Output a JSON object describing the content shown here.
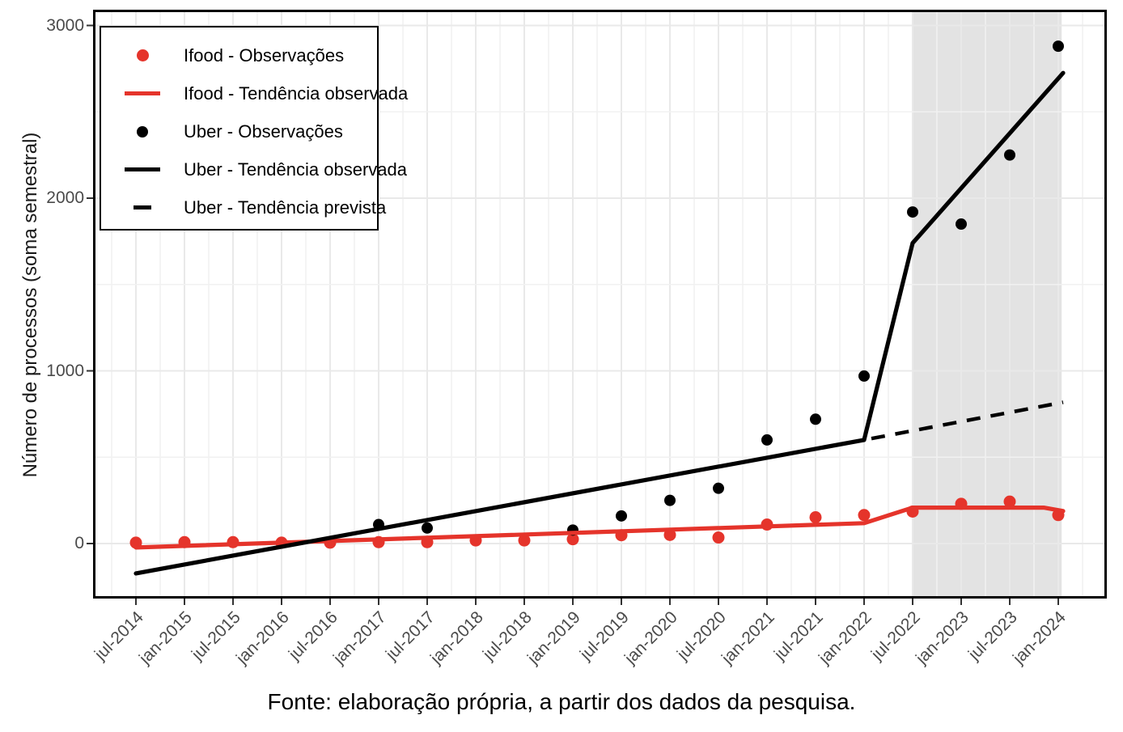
{
  "chart_data": {
    "type": "line",
    "title": "",
    "xlabel": "",
    "ylabel": "Número de processos (soma semestral)",
    "caption": "Fonte: elaboração própria, a partir dos dados da pesquisa.",
    "x_categories": [
      "jul-2014",
      "jan-2015",
      "jul-2015",
      "jan-2016",
      "jul-2016",
      "jan-2017",
      "jul-2017",
      "jan-2018",
      "jul-2018",
      "jan-2019",
      "jul-2019",
      "jan-2020",
      "jul-2020",
      "jan-2021",
      "jul-2021",
      "jan-2022",
      "jul-2022",
      "jan-2023",
      "jul-2023",
      "jan-2024"
    ],
    "yticks": [
      0,
      1000,
      2000,
      3000
    ],
    "ylim": [
      -320,
      3090
    ],
    "grid": true,
    "legend_position": "top-left-inside",
    "forecast_band": {
      "from_index": 16.0,
      "to_index": 19.07,
      "color": "#e3e3e3"
    },
    "series": [
      {
        "name": "Ifood - Observações",
        "kind": "scatter",
        "color": "#e5342b",
        "values": [
          5,
          8,
          8,
          5,
          5,
          8,
          8,
          18,
          18,
          25,
          48,
          50,
          35,
          110,
          152,
          165,
          185,
          230,
          243,
          165
        ]
      },
      {
        "name": "Ifood - Tendência observada",
        "kind": "line",
        "color": "#e5342b",
        "points": [
          [
            0,
            -23
          ],
          [
            15,
            118
          ],
          [
            16,
            208
          ],
          [
            18.7,
            208
          ],
          [
            19.1,
            188
          ]
        ]
      },
      {
        "name": "Uber - Observações",
        "kind": "scatter",
        "color": "#000000",
        "values": [
          null,
          null,
          null,
          null,
          null,
          110,
          90,
          null,
          null,
          78,
          160,
          250,
          320,
          600,
          720,
          970,
          1920,
          1850,
          2250,
          2880
        ]
      },
      {
        "name": "Uber - Tendência observada",
        "kind": "line",
        "color": "#000000",
        "points": [
          [
            0,
            -173
          ],
          [
            15,
            600
          ],
          [
            16,
            1740
          ],
          [
            19.1,
            2725
          ]
        ]
      },
      {
        "name": "Uber - Tendência prevista",
        "kind": "dashed-line",
        "color": "#000000",
        "points": [
          [
            15.15,
            608
          ],
          [
            19.1,
            818
          ]
        ]
      }
    ]
  },
  "legend": {
    "items": [
      {
        "label": "Ifood - Observações",
        "symbol": "dot",
        "color": "#e5342b"
      },
      {
        "label": "Ifood - Tendência observada",
        "symbol": "line",
        "color": "#e5342b"
      },
      {
        "label": "Uber - Observações",
        "symbol": "dot",
        "color": "#000000"
      },
      {
        "label": "Uber - Tendência observada",
        "symbol": "line",
        "color": "#000000"
      },
      {
        "label": "Uber - Tendência prevista",
        "symbol": "dash",
        "color": "#000000"
      }
    ]
  }
}
